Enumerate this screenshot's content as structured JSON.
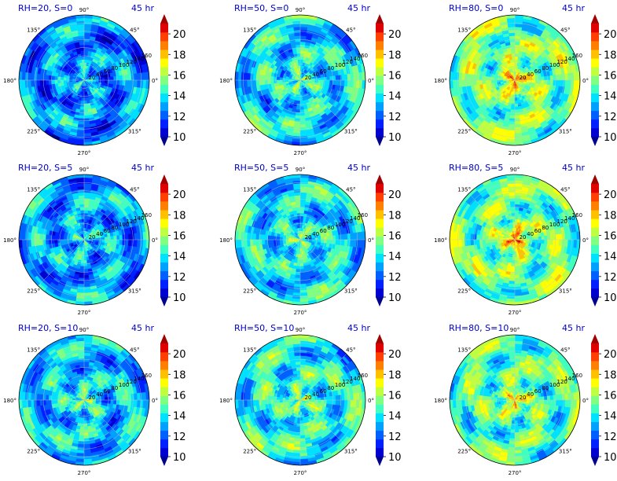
{
  "chart_data": {
    "type": "polar filled-contour grid (3x3 small multiples)",
    "time_label": "45 hr",
    "angle_ticks": [
      "0°",
      "45°",
      "90°",
      "135°",
      "180°",
      "225°",
      "270°",
      "315°"
    ],
    "radial_ticks": [
      "20",
      "40",
      "60",
      "80",
      "100",
      "120",
      "140",
      "160"
    ],
    "radial_range": [
      0,
      160
    ],
    "colorbar": {
      "ticks": [
        "10",
        "12",
        "14",
        "16",
        "18",
        "20"
      ],
      "range": [
        10,
        21
      ],
      "colors": [
        "#00008f",
        "#0000cf",
        "#0020ff",
        "#0060ff",
        "#00a0ff",
        "#00e0ff",
        "#40ffbf",
        "#80ff80",
        "#c0ff40",
        "#ffff00",
        "#ffc000",
        "#ff8000",
        "#ff4000",
        "#df0000",
        "#9f0000"
      ],
      "extend": "both"
    },
    "panels": [
      {
        "title": "RH=20, S=0",
        "mean_level": 12.6,
        "core_level": 13.5
      },
      {
        "title": "RH=50, S=0",
        "mean_level": 13.8,
        "core_level": 15.2
      },
      {
        "title": "RH=80, S=0",
        "mean_level": 15.3,
        "core_level": 18.5
      },
      {
        "title": "RH=20, S=5",
        "mean_level": 13.0,
        "core_level": 14.0
      },
      {
        "title": "RH=50, S=5",
        "mean_level": 13.8,
        "core_level": 15.5
      },
      {
        "title": "RH=80, S=5",
        "mean_level": 15.2,
        "core_level": 18.8
      },
      {
        "title": "RH=20, S=10",
        "mean_level": 13.4,
        "core_level": 15.5
      },
      {
        "title": "RH=50, S=10",
        "mean_level": 14.2,
        "core_level": 15.8
      },
      {
        "title": "RH=80, S=10",
        "mean_level": 14.9,
        "core_level": 17.5
      }
    ]
  }
}
